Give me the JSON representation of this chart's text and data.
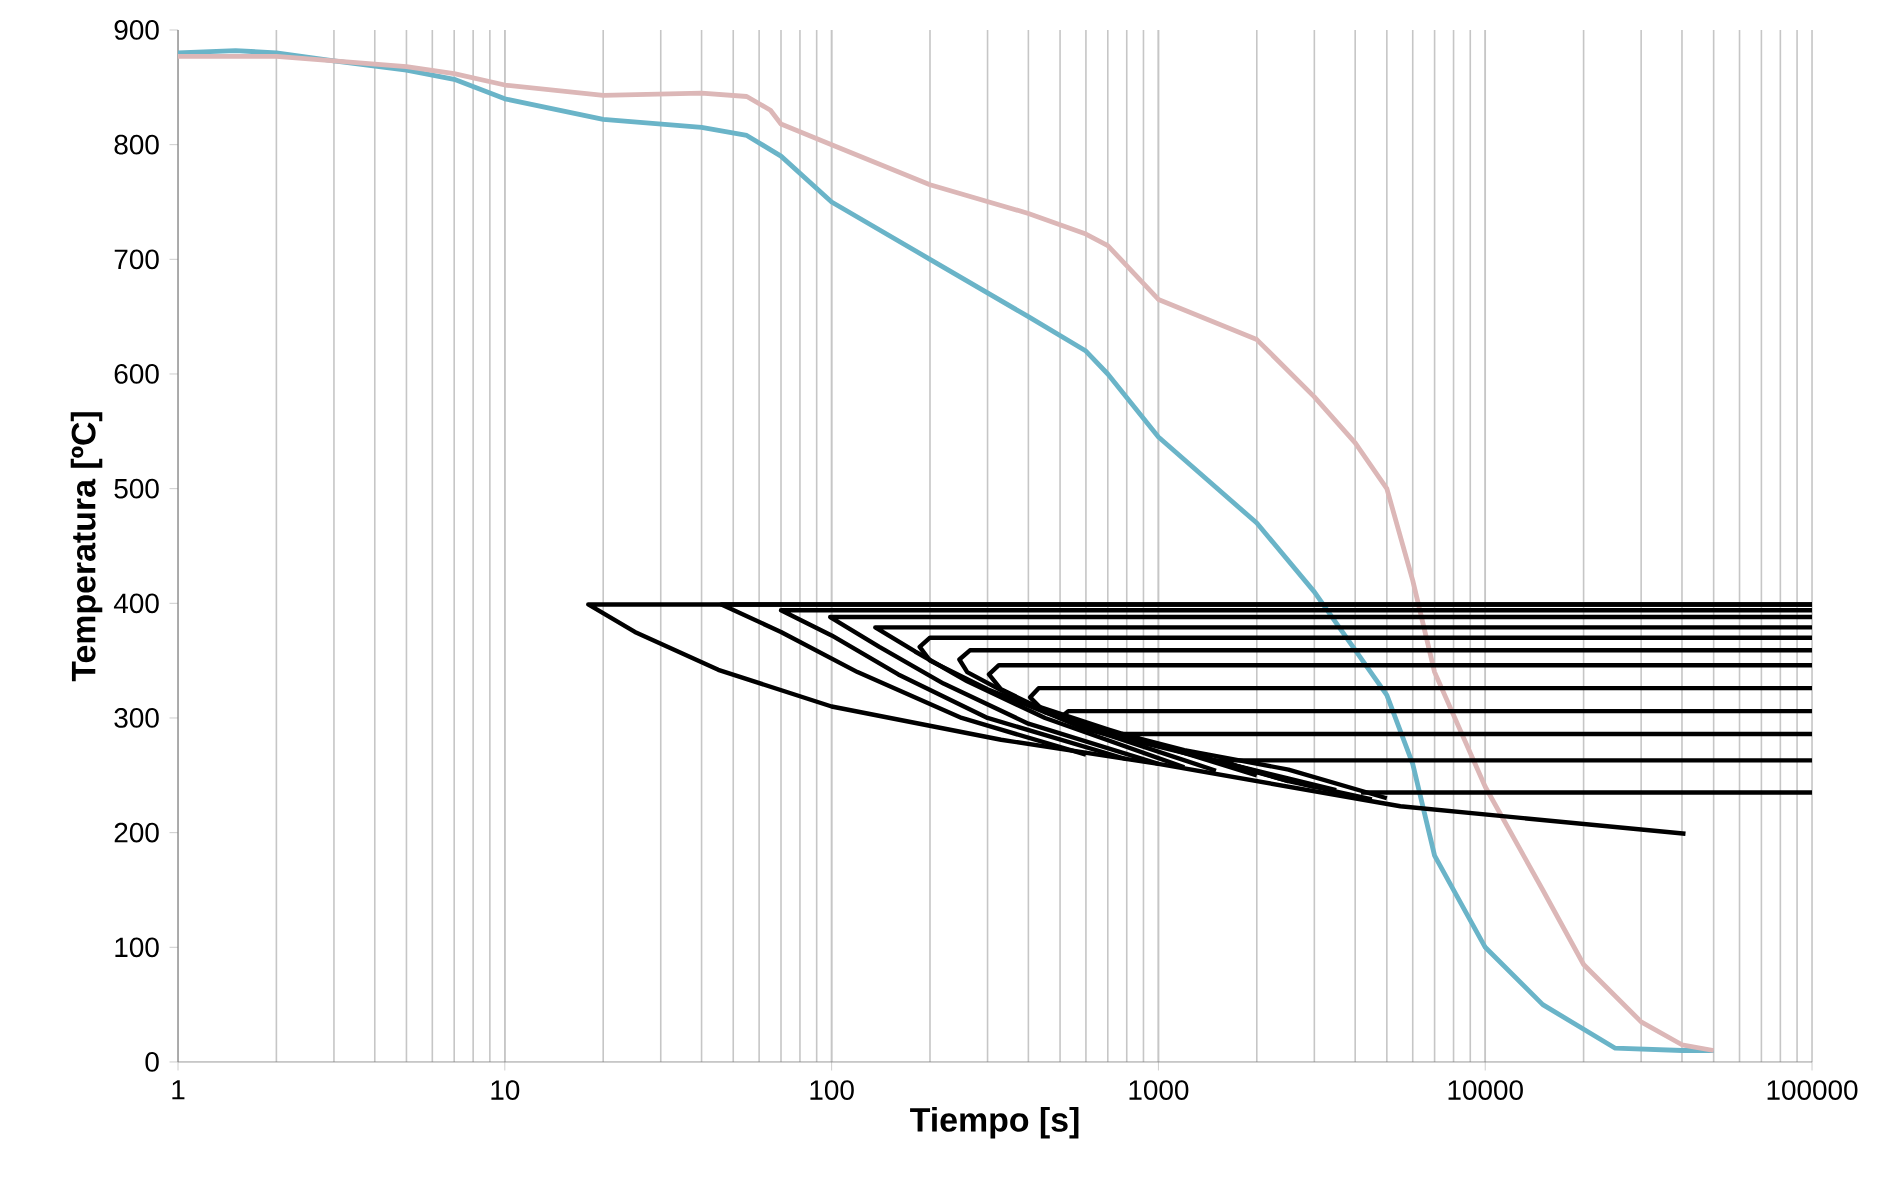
{
  "chart_data": {
    "type": "line",
    "xlabel": "Tiempo [s]",
    "ylabel": "Temperatura [ºC]",
    "log": "x",
    "grid": "x",
    "xlim": [
      1,
      100000
    ],
    "ylim": [
      0,
      900
    ],
    "xticks": [
      1,
      10,
      100,
      1000,
      10000,
      100000
    ],
    "yticks": [
      0,
      100,
      200,
      300,
      400,
      500,
      600,
      700,
      800,
      900
    ],
    "series": [
      {
        "color": "#6ab4c8",
        "x": [
          1,
          1.5,
          2,
          3,
          5,
          7,
          10,
          20,
          40,
          55,
          70,
          100,
          200,
          400,
          600,
          700,
          1000,
          2000,
          3000,
          5000,
          6000,
          7000,
          10000,
          15000,
          25000,
          40000,
          50000
        ],
        "values": [
          880,
          882,
          880,
          873,
          865,
          857,
          840,
          822,
          815,
          808,
          790,
          750,
          700,
          650,
          620,
          600,
          545,
          470,
          410,
          320,
          260,
          180,
          100,
          50,
          12,
          10,
          10
        ]
      },
      {
        "color": "#dcb7b7",
        "x": [
          1,
          2,
          3,
          5,
          7,
          10,
          20,
          40,
          55,
          65,
          70,
          100,
          200,
          400,
          600,
          700,
          1000,
          2000,
          3000,
          4000,
          5000,
          6000,
          7000,
          10000,
          15000,
          20000,
          30000,
          40000,
          50000
        ],
        "values": [
          877,
          877,
          873,
          868,
          862,
          852,
          843,
          845,
          842,
          830,
          818,
          800,
          765,
          740,
          722,
          712,
          665,
          630,
          580,
          540,
          500,
          420,
          340,
          240,
          150,
          85,
          35,
          15,
          10
        ]
      },
      {
        "color": "#000000",
        "x": [
          100000,
          18,
          25,
          45,
          100,
          330,
          1000,
          5500,
          41000
        ],
        "values": [
          399,
          399,
          375,
          342,
          310,
          281,
          260,
          223,
          199
        ]
      },
      {
        "color": "#000000",
        "x": [
          100000,
          46,
          70,
          120,
          250,
          600
        ],
        "values": [
          399,
          399,
          375,
          340,
          300,
          268
        ]
      },
      {
        "color": "#000000",
        "x": [
          100000,
          70,
          100,
          160,
          300,
          800
        ],
        "values": [
          394,
          394,
          372,
          338,
          300,
          264
        ]
      },
      {
        "color": "#000000",
        "x": [
          100000,
          99,
          140,
          220,
          400,
          1000
        ],
        "values": [
          388,
          388,
          362,
          330,
          295,
          260
        ]
      },
      {
        "color": "#000000",
        "x": [
          100000,
          136,
          180,
          260,
          450,
          1200
        ],
        "values": [
          379,
          379,
          358,
          332,
          300,
          257
        ]
      },
      {
        "color": "#000000",
        "x": [
          100000,
          200,
          186,
          200,
          300,
          550,
          1500
        ],
        "values": [
          370,
          370,
          362,
          350,
          325,
          295,
          254
        ]
      },
      {
        "color": "#000000",
        "x": [
          100000,
          265,
          246,
          260,
          380,
          700,
          2000
        ],
        "values": [
          359,
          359,
          351,
          340,
          315,
          290,
          250
        ]
      },
      {
        "color": "#000000",
        "x": [
          100000,
          325,
          303,
          330,
          500,
          900,
          2500
        ],
        "values": [
          346,
          346,
          338,
          325,
          300,
          280,
          245
        ]
      },
      {
        "color": "#000000",
        "x": [
          100000,
          430,
          405,
          450,
          700,
          3000
        ],
        "values": [
          326,
          326,
          318,
          305,
          288,
          240
        ]
      },
      {
        "color": "#000000",
        "x": [
          100000,
          530,
          500,
          600,
          1000,
          3500
        ],
        "values": [
          306,
          306,
          300,
          290,
          275,
          237
        ]
      },
      {
        "color": "#000000",
        "x": [
          100000,
          775,
          1200,
          2500,
          5000
        ],
        "values": [
          286,
          286,
          272,
          255,
          230
        ]
      },
      {
        "color": "#000000",
        "x": [
          100000,
          1520,
          2500,
          4500
        ],
        "values": [
          263,
          263,
          245,
          229
        ]
      },
      {
        "color": "#000000",
        "x": [
          100000,
          4170
        ],
        "values": [
          235,
          235
        ]
      }
    ]
  }
}
